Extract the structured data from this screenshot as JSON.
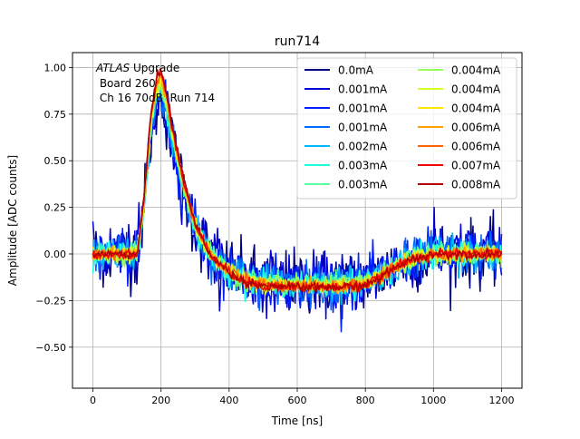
{
  "chart_data": {
    "type": "line",
    "title": "run714",
    "xlabel": "Time [ns]",
    "ylabel": "Amplitude [ADC counts]",
    "xlim": [
      -60,
      1260
    ],
    "ylim": [
      -0.72,
      1.08
    ],
    "grid": true,
    "legend_position": "top-right",
    "legend_columns": 2,
    "x_ticks": [
      0,
      200,
      400,
      600,
      800,
      1000,
      1200
    ],
    "x_tick_labels": [
      "0",
      "200",
      "400",
      "600",
      "800",
      "1000",
      "1200"
    ],
    "y_ticks": [
      -0.5,
      -0.25,
      0.0,
      0.25,
      0.5,
      0.75,
      1.0
    ],
    "y_tick_labels": [
      "−0.50",
      "−0.25",
      "0.00",
      "0.25",
      "0.50",
      "0.75",
      "1.00"
    ],
    "annotation": {
      "italic": "ATLAS",
      "rest": " Upgrade",
      "line2": " Board 260",
      "line3": " Ch 16 70dB  Run 714"
    },
    "pulse_shape": {
      "x": [
        0,
        130,
        150,
        170,
        190,
        200,
        215,
        230,
        260,
        300,
        350,
        400,
        450,
        500,
        600,
        700,
        800,
        850,
        900,
        950,
        1000,
        1100,
        1200
      ],
      "y": [
        0.0,
        0.0,
        0.3,
        0.75,
        0.97,
        0.98,
        0.88,
        0.72,
        0.45,
        0.16,
        -0.02,
        -0.1,
        -0.15,
        -0.17,
        -0.18,
        -0.18,
        -0.17,
        -0.12,
        -0.06,
        -0.02,
        0.0,
        0.0,
        0.0
      ]
    },
    "series": [
      {
        "name": "0.0mA",
        "color": "#00007f",
        "noise": 0.16
      },
      {
        "name": "0.001mA",
        "color": "#0000d8",
        "noise": 0.14
      },
      {
        "name": "0.001mA",
        "color": "#0020ff",
        "noise": 0.12
      },
      {
        "name": "0.001mA",
        "color": "#006cff",
        "noise": 0.1
      },
      {
        "name": "0.002mA",
        "color": "#00b8ff",
        "noise": 0.08
      },
      {
        "name": "0.003mA",
        "color": "#1cffdb",
        "noise": 0.06
      },
      {
        "name": "0.003mA",
        "color": "#5affa0",
        "noise": 0.05
      },
      {
        "name": "0.004mA",
        "color": "#97ff5a",
        "noise": 0.045
      },
      {
        "name": "0.004mA",
        "color": "#d1ff26",
        "noise": 0.04
      },
      {
        "name": "0.004mA",
        "color": "#ffe500",
        "noise": 0.035
      },
      {
        "name": "0.006mA",
        "color": "#ffa300",
        "noise": 0.03
      },
      {
        "name": "0.006mA",
        "color": "#ff6400",
        "noise": 0.028
      },
      {
        "name": "0.007mA",
        "color": "#f10800",
        "noise": 0.025
      },
      {
        "name": "0.008mA",
        "color": "#b20000",
        "noise": 0.022
      }
    ]
  }
}
